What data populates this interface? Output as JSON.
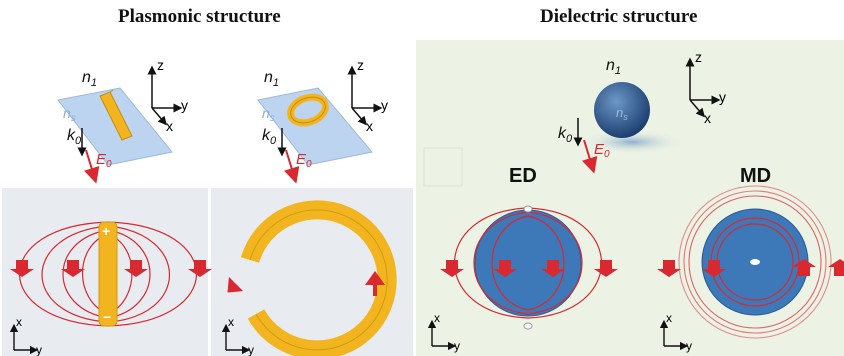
{
  "titles": {
    "plasmonic": "Plasmonic structure",
    "dielectric": "Dielectric structure"
  },
  "labels": {
    "n1": "n",
    "n1_sub": "1",
    "ns": "n",
    "ns_sub": "s",
    "k0": "k",
    "k0_sub": "0",
    "E0": "E",
    "E0_sub": "0",
    "x": "x",
    "y": "y",
    "z": "z",
    "plus": "+",
    "minus": "−",
    "ED": "ED",
    "MD": "MD"
  },
  "colors": {
    "field_line": "#d9282f",
    "rod_gold": "#f2b51f",
    "sphere_blue": "#3d78b8",
    "panel_bg": "#e8ecf0",
    "dielectric_bg": "#ecf2e4"
  }
}
